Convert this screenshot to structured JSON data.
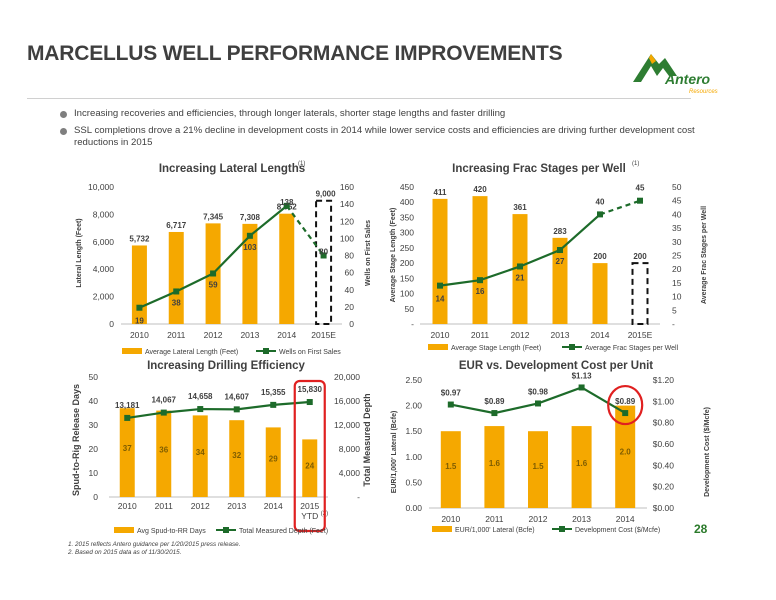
{
  "page": {
    "title": "MARCELLUS WELL PERFORMANCE IMPROVEMENTS",
    "page_number": "28",
    "logo": {
      "text": "Antero",
      "subtext": "Resources",
      "color": "#2e7d32",
      "accent": "#f5a800"
    },
    "bullets": [
      "Increasing recoveries and efficiencies, through longer laterals, shorter stage lengths and faster drilling",
      "SSL completions drove a 21% decline in development costs in 2014 while lower service costs and efficiencies are driving further development cost reductions in 2015"
    ],
    "footnotes": [
      "1.  2015 reflects Antero guidance per 1/20/2015 press release.",
      "2.  Based on 2015 data as of 11/30/2015."
    ]
  },
  "colors": {
    "bar": "#f5a800",
    "line": "#1d6b2a",
    "highlight": "#e02020"
  },
  "chart_data": [
    {
      "type": "bar",
      "title": "Increasing Lateral Lengths",
      "title_sup": "(1)",
      "categories": [
        "2010",
        "2011",
        "2012",
        "2013",
        "2014",
        "2015E"
      ],
      "bars": {
        "name": "Average Lateral Length (Feet)",
        "values": [
          5732,
          6717,
          7345,
          7308,
          8052,
          9000
        ],
        "labels": [
          "5,732",
          "6,717",
          "7,345",
          "7,308",
          "8,052",
          "9,000"
        ],
        "last_dashed": true
      },
      "line": {
        "name": "Wells on First Sales",
        "values": [
          19,
          38,
          59,
          103,
          138,
          80
        ],
        "labels": [
          "19",
          "38",
          "59",
          "103",
          "138",
          "80"
        ],
        "last_dashed": true
      },
      "ylabel": "Lateral Length (Feet)",
      "y2label": "Wells on First Sales",
      "ylim": [
        0,
        10000
      ],
      "y2lim": [
        0,
        160
      ],
      "yticks": [
        "0",
        "2,000",
        "4,000",
        "6,000",
        "8,000",
        "10,000"
      ],
      "y2ticks": [
        "0",
        "20",
        "40",
        "60",
        "80",
        "100",
        "120",
        "140",
        "160"
      ]
    },
    {
      "type": "bar",
      "title": "Increasing Frac Stages per Well",
      "title_sup": "(1)",
      "categories": [
        "2010",
        "2011",
        "2012",
        "2013",
        "2014",
        "2015E"
      ],
      "bars": {
        "name": "Average Stage Length (Feet)",
        "values": [
          411,
          420,
          361,
          283,
          200,
          200
        ],
        "labels": [
          "411",
          "420",
          "361",
          "283",
          "200",
          "200"
        ],
        "last_dashed": true
      },
      "line": {
        "name": "Average Frac Stages per Well",
        "values": [
          14,
          16,
          21,
          27,
          40,
          45
        ],
        "labels": [
          "14",
          "16",
          "21",
          "27",
          "40",
          "45"
        ],
        "last_dashed": true
      },
      "ylabel": "Average Stage Length (Feet)",
      "y2label": "Average Frac Stages per Well",
      "ylim": [
        0,
        450
      ],
      "y2lim": [
        0,
        50
      ],
      "yticks": [
        "-",
        "50",
        "100",
        "150",
        "200",
        "250",
        "300",
        "350",
        "400",
        "450"
      ],
      "y2ticks": [
        "-",
        "5",
        "10",
        "15",
        "20",
        "25",
        "30",
        "35",
        "40",
        "45",
        "50"
      ]
    },
    {
      "type": "bar",
      "title": "Increasing Drilling Efficiency",
      "categories": [
        "2010",
        "2011",
        "2012",
        "2013",
        "2014",
        "2015 YTD"
      ],
      "category_sup": "(2)",
      "bars": {
        "name": "Avg Spud-to-RR Days",
        "values": [
          37,
          36,
          34,
          32,
          29,
          24
        ],
        "labels": [
          "37",
          "36",
          "34",
          "32",
          "29",
          "24"
        ]
      },
      "line": {
        "name": "Total Measured Depth (Feet)",
        "values": [
          13181,
          14067,
          14658,
          14607,
          15355,
          15830
        ],
        "labels": [
          "13,181",
          "14,067",
          "14,658",
          "14,607",
          "15,355",
          "15,830"
        ]
      },
      "ylabel": "Spud-to-Rig Release Days",
      "y2label": "Total Measured Depth",
      "ylim": [
        0,
        50
      ],
      "y2lim": [
        0,
        20000
      ],
      "yticks": [
        "0",
        "10",
        "20",
        "30",
        "40",
        "50"
      ],
      "y2ticks": [
        "-",
        "4,000",
        "8,000",
        "12,000",
        "16,000",
        "20,000"
      ],
      "highlight_index": 5
    },
    {
      "type": "bar",
      "title": "EUR vs. Development Cost per Unit",
      "categories": [
        "2010",
        "2011",
        "2012",
        "2013",
        "2014"
      ],
      "bars": {
        "name": "EUR/1,000' Lateral (Bcfe)",
        "values": [
          1.5,
          1.6,
          1.5,
          1.6,
          2.0
        ],
        "labels": [
          "1.5",
          "1.6",
          "1.5",
          "1.6",
          "2.0"
        ]
      },
      "line": {
        "name": "Development Cost ($/Mcfe)",
        "values": [
          0.97,
          0.89,
          0.98,
          1.13,
          0.89
        ],
        "labels": [
          "$0.97",
          "$0.89",
          "$0.98",
          "$1.13",
          "$0.89"
        ]
      },
      "ylabel": "EUR/1,000' Lateral (Bcfe)",
      "y2label": "Development Cost ($/Mcfe)",
      "ylim": [
        0,
        2.5
      ],
      "y2lim": [
        0,
        1.2
      ],
      "yticks": [
        "0.00",
        "0.50",
        "1.00",
        "1.50",
        "2.00",
        "2.50"
      ],
      "y2ticks": [
        "$0.00",
        "$0.20",
        "$0.40",
        "$0.60",
        "$0.80",
        "$1.00",
        "$1.20"
      ],
      "highlight_index": 4
    }
  ]
}
